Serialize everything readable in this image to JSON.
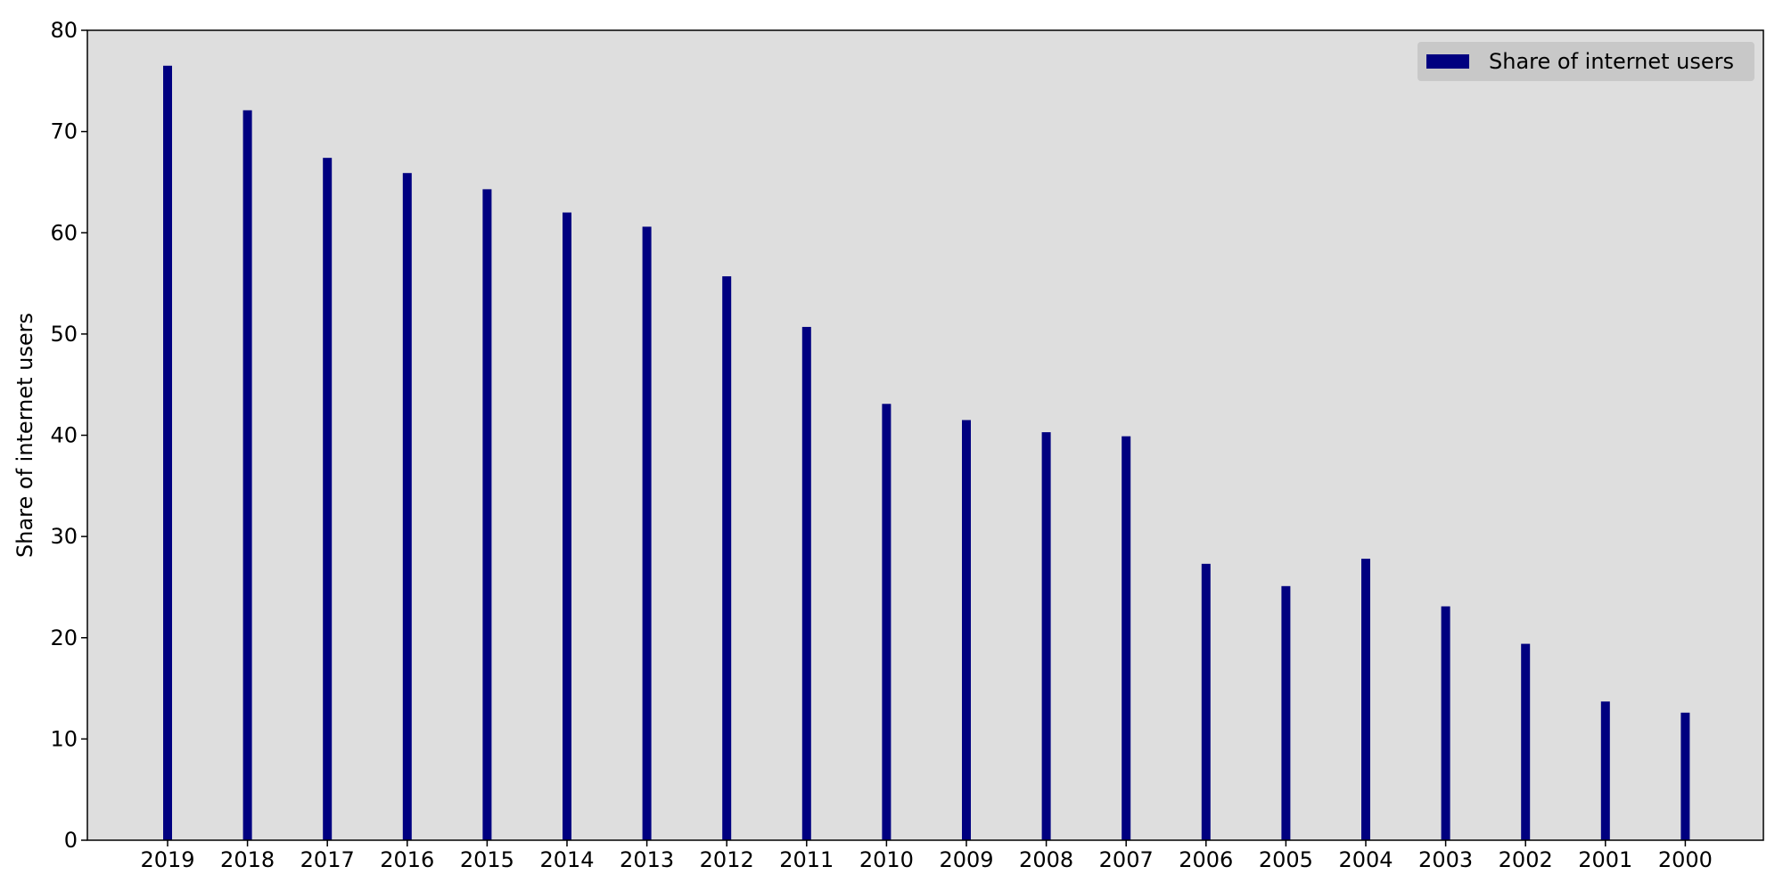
{
  "colors": {
    "plot_background": "#dedede",
    "bar": "#000080",
    "legend_background": "#c8c8c8",
    "axis": "#000000"
  },
  "chart_data": {
    "type": "bar",
    "title": "",
    "xlabel": "",
    "ylabel": "Share of internet users",
    "categories": [
      "2019",
      "2018",
      "2017",
      "2016",
      "2015",
      "2014",
      "2013",
      "2012",
      "2011",
      "2010",
      "2009",
      "2008",
      "2007",
      "2006",
      "2005",
      "2004",
      "2003",
      "2002",
      "2001",
      "2000"
    ],
    "series": [
      {
        "name": "Share of internet users",
        "values": [
          76.5,
          72.1,
          67.4,
          65.9,
          64.3,
          62.0,
          60.6,
          55.7,
          50.7,
          43.1,
          41.5,
          40.3,
          39.9,
          27.3,
          25.1,
          27.8,
          23.1,
          19.4,
          13.7,
          12.6
        ]
      }
    ],
    "ylim": [
      0,
      80
    ],
    "yticks": [
      "0",
      "10",
      "20",
      "30",
      "40",
      "50",
      "60",
      "70",
      "80"
    ],
    "grid": false,
    "legend_position": "top-right"
  }
}
